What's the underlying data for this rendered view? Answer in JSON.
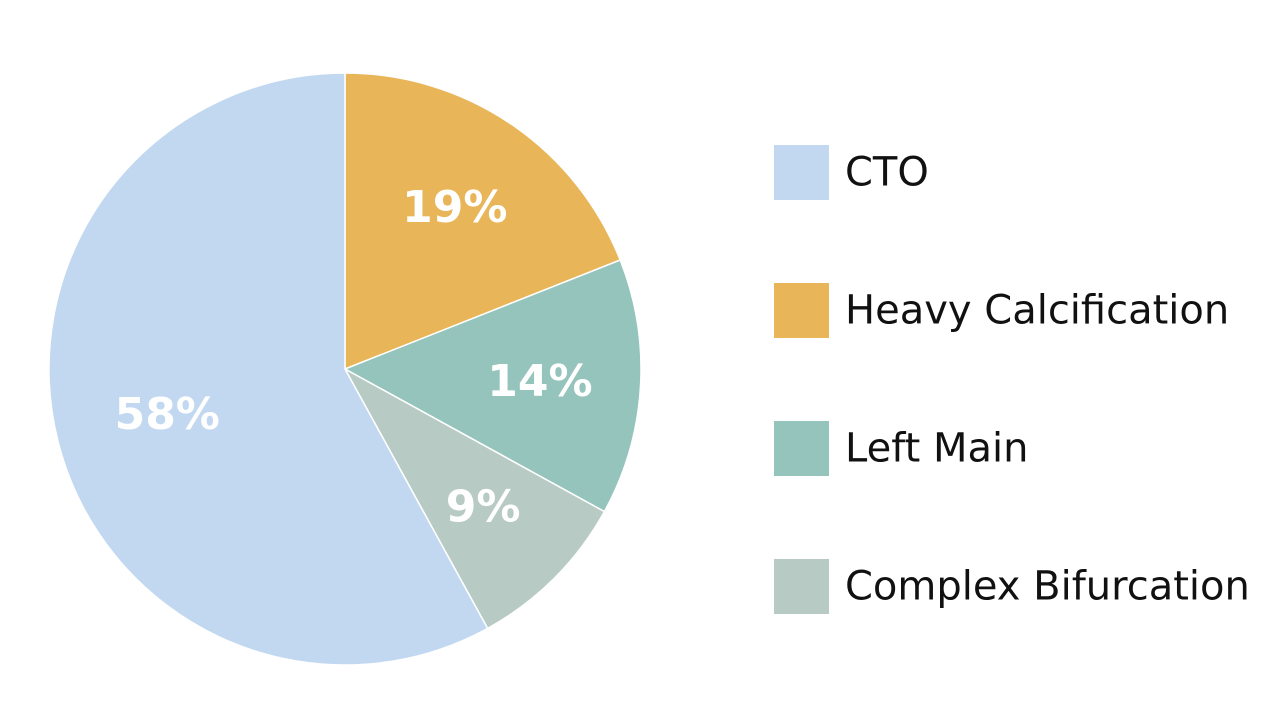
{
  "chart_data": {
    "type": "pie",
    "title": "",
    "categories": [
      "CTO",
      "Heavy Calcification",
      "Left Main",
      "Complex Bifurcation"
    ],
    "values": [
      58,
      19,
      14,
      9
    ],
    "labels": [
      "58%",
      "19%",
      "14%",
      "9%"
    ],
    "colors": [
      "#c2d8f1",
      "#e8b559",
      "#95c4bd",
      "#b7cac4"
    ],
    "legend": {
      "position": "right",
      "entries": [
        "CTO",
        "Heavy Calcification",
        "Left Main",
        "Complex Bifurcation"
      ]
    }
  }
}
